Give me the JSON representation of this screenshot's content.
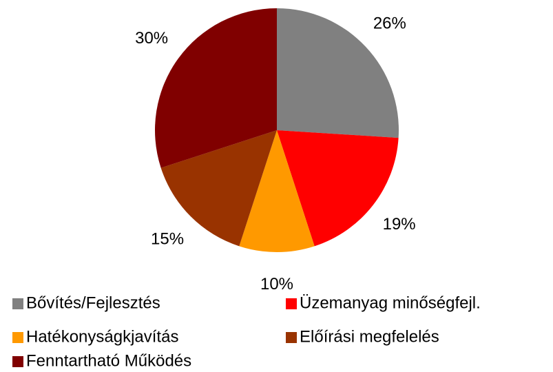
{
  "chart_data": {
    "type": "pie",
    "categories": [
      "Bővítés/Fejlesztés",
      "Üzemanyag minőségfejl.",
      "Hatékonyságkjavítás",
      "Előírási megfelelés",
      "Fenntartható Működés"
    ],
    "values": [
      26,
      19,
      10,
      15,
      30
    ],
    "value_labels": [
      "26%",
      "19%",
      "10%",
      "15%",
      "30%"
    ],
    "colors": [
      "#808080",
      "#ff0000",
      "#ff9900",
      "#993300",
      "#800000"
    ]
  }
}
